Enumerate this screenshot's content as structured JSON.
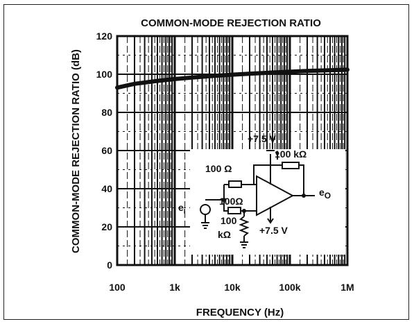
{
  "chart_data": {
    "type": "line",
    "title": "COMMON-MODE REJECTION RATIO",
    "xlabel": "FREQUENCY (Hz)",
    "ylabel": "COMMON-MODE REJECTION RATIO (dB)",
    "x_scale": "log",
    "xlim": [
      100,
      1000000
    ],
    "ylim": [
      0,
      120
    ],
    "x_ticks": [
      "100",
      "1k",
      "10k",
      "100k",
      "1M"
    ],
    "y_ticks": [
      "0",
      "20",
      "40",
      "60",
      "80",
      "100",
      "120"
    ],
    "grid": true,
    "series": [
      {
        "x": [
          100,
          200,
          500,
          1000,
          2000,
          5000,
          10000,
          20000,
          50000,
          100000,
          200000,
          500000,
          1000000
        ],
        "y": [
          93,
          95,
          96.5,
          97.5,
          98.3,
          99.2,
          99.8,
          100.3,
          100.9,
          101.3,
          101.7,
          102.1,
          102.4
        ]
      }
    ]
  },
  "circuit": {
    "supply_top": "+7.5 V",
    "supply_bottom": "+7.5 V",
    "r_feedback": "100 kΩ",
    "r_input": "100 Ω",
    "r_noninv": "100Ω",
    "r_ground_value": "100",
    "r_ground_unit": "kΩ",
    "input_label": "e",
    "input_sub": "I",
    "output_label": "e",
    "output_sub": "O"
  }
}
